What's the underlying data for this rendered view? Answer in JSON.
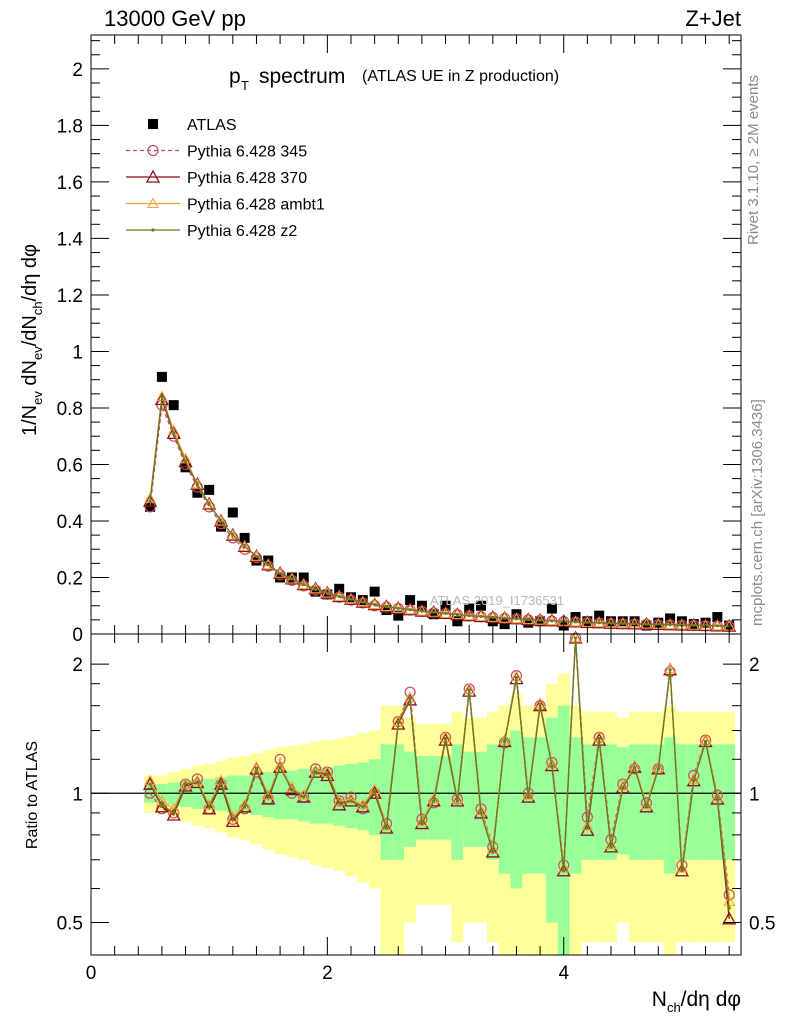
{
  "header": {
    "left": "13000 GeV pp",
    "right": "Z+Jet"
  },
  "side_labels": {
    "rivet": "Rivet 3.1.10, ≥ 2M events",
    "mcplots": "mcplots.cern.ch [arXiv:1306.3436]"
  },
  "watermark": "ATLAS 2019_I1736531",
  "colors": {
    "data": "#000000",
    "p345": "#c44e62",
    "p370": "#8b0e1e",
    "ambt1": "#f2a33a",
    "z2": "#6b7b1f",
    "band_outer": "#ffff99",
    "band_inner": "#99ff99"
  },
  "chart_data": [
    {
      "type": "scatter",
      "title": "p_T spectrum (ATLAS UE in Z production)",
      "title_main": "p",
      "title_sub": "T",
      "title_word": "spectrum",
      "title_paren": "(ATLAS UE in Z production)",
      "ylabel": "1/N_ev dN_ev/dN_ch/dη dφ",
      "ylabel_parts": [
        "1/N",
        "ev",
        " dN",
        "ev",
        "/dN",
        "ch",
        "/dη dφ"
      ],
      "xlim": [
        0,
        5.5
      ],
      "ylim": [
        0,
        2.12
      ],
      "yticks": [
        "0",
        "0.2",
        "0.4",
        "0.6",
        "0.8",
        "1",
        "1.2",
        "1.4",
        "1.6",
        "1.8",
        "2"
      ],
      "legend_position": "top-left",
      "legend": [
        "ATLAS",
        "Pythia 6.428 345",
        "Pythia 6.428 370",
        "Pythia 6.428 ambt1",
        "Pythia 6.428 z2"
      ],
      "x": [
        0.5,
        0.6,
        0.7,
        0.8,
        0.9,
        1.0,
        1.1,
        1.2,
        1.3,
        1.4,
        1.5,
        1.6,
        1.7,
        1.8,
        1.9,
        2.0,
        2.1,
        2.2,
        2.3,
        2.4,
        2.5,
        2.6,
        2.7,
        2.8,
        2.9,
        3.0,
        3.1,
        3.2,
        3.3,
        3.4,
        3.5,
        3.6,
        3.7,
        3.8,
        3.9,
        4.0,
        4.1,
        4.2,
        4.3,
        4.4,
        4.5,
        4.6,
        4.7,
        4.8,
        4.9,
        5.0,
        5.1,
        5.2,
        5.3,
        5.4
      ],
      "series": [
        {
          "name": "ATLAS",
          "values": [
            0.45,
            0.91,
            0.81,
            0.59,
            0.5,
            0.51,
            0.38,
            0.43,
            0.34,
            0.26,
            0.26,
            0.2,
            0.2,
            0.2,
            0.15,
            0.14,
            0.16,
            0.13,
            0.12,
            0.15,
            0.085,
            0.065,
            0.12,
            0.1,
            0.07,
            0.1,
            0.045,
            0.09,
            0.1,
            0.045,
            0.035,
            0.07,
            0.04,
            0.045,
            0.09,
            0.03,
            0.06,
            0.045,
            0.065,
            0.045,
            0.045,
            0.045,
            0.03,
            0.04,
            0.055,
            0.045,
            0.035,
            0.04,
            0.06,
            0.03
          ]
        },
        {
          "name": "Pythia 6.428 345",
          "values": [
            0.45,
            0.81,
            0.7,
            0.6,
            0.52,
            0.45,
            0.39,
            0.34,
            0.3,
            0.27,
            0.24,
            0.21,
            0.19,
            0.17,
            0.155,
            0.14,
            0.13,
            0.12,
            0.11,
            0.1,
            0.095,
            0.09,
            0.085,
            0.08,
            0.075,
            0.072,
            0.068,
            0.064,
            0.061,
            0.058,
            0.055,
            0.053,
            0.05,
            0.048,
            0.046,
            0.044,
            0.042,
            0.04,
            0.039,
            0.037,
            0.036,
            0.035,
            0.034,
            0.033,
            0.032,
            0.031,
            0.03,
            0.029,
            0.028,
            0.027
          ]
        },
        {
          "name": "Pythia 6.428 370",
          "values": [
            0.47,
            0.83,
            0.71,
            0.61,
            0.53,
            0.46,
            0.4,
            0.35,
            0.31,
            0.275,
            0.245,
            0.215,
            0.195,
            0.175,
            0.16,
            0.145,
            0.133,
            0.123,
            0.113,
            0.104,
            0.097,
            0.091,
            0.086,
            0.081,
            0.077,
            0.073,
            0.069,
            0.065,
            0.062,
            0.059,
            0.056,
            0.054,
            0.051,
            0.049,
            0.047,
            0.045,
            0.043,
            0.041,
            0.04,
            0.038,
            0.037,
            0.036,
            0.035,
            0.034,
            0.033,
            0.032,
            0.031,
            0.03,
            0.029,
            0.028
          ]
        },
        {
          "name": "Pythia 6.428 ambt1",
          "values": [
            0.48,
            0.84,
            0.72,
            0.62,
            0.53,
            0.46,
            0.4,
            0.35,
            0.31,
            0.275,
            0.245,
            0.215,
            0.195,
            0.175,
            0.16,
            0.145,
            0.133,
            0.123,
            0.113,
            0.104,
            0.097,
            0.091,
            0.086,
            0.081,
            0.077,
            0.073,
            0.069,
            0.065,
            0.062,
            0.059,
            0.056,
            0.054,
            0.051,
            0.049,
            0.047,
            0.045,
            0.043,
            0.041,
            0.04,
            0.038,
            0.037,
            0.036,
            0.035,
            0.034,
            0.033,
            0.032,
            0.031,
            0.03,
            0.029,
            0.028
          ]
        },
        {
          "name": "Pythia 6.428 z2",
          "values": [
            0.47,
            0.84,
            0.71,
            0.61,
            0.53,
            0.46,
            0.4,
            0.35,
            0.31,
            0.275,
            0.245,
            0.215,
            0.195,
            0.175,
            0.16,
            0.145,
            0.133,
            0.123,
            0.113,
            0.104,
            0.097,
            0.091,
            0.086,
            0.081,
            0.077,
            0.073,
            0.069,
            0.065,
            0.062,
            0.059,
            0.056,
            0.054,
            0.051,
            0.049,
            0.047,
            0.045,
            0.043,
            0.041,
            0.04,
            0.038,
            0.037,
            0.036,
            0.035,
            0.034,
            0.033,
            0.032,
            0.031,
            0.03,
            0.029,
            0.028
          ]
        }
      ]
    },
    {
      "type": "line",
      "ylabel": "Ratio to ATLAS",
      "xlabel": "N_ch/dη dφ",
      "xlabel_parts": [
        "N",
        "ch",
        "/dη dφ"
      ],
      "xlim": [
        0,
        5.5
      ],
      "ylim": [
        0.42,
        2.35
      ],
      "log_y": true,
      "yticks": [
        "0.5",
        "1",
        "2"
      ],
      "xticks": [
        "0",
        "2",
        "4"
      ],
      "x": [
        0.5,
        0.6,
        0.7,
        0.8,
        0.9,
        1.0,
        1.1,
        1.2,
        1.3,
        1.4,
        1.5,
        1.6,
        1.7,
        1.8,
        1.9,
        2.0,
        2.1,
        2.2,
        2.3,
        2.4,
        2.5,
        2.6,
        2.7,
        2.8,
        2.9,
        3.0,
        3.1,
        3.2,
        3.3,
        3.4,
        3.5,
        3.6,
        3.7,
        3.8,
        3.9,
        4.0,
        4.1,
        4.2,
        4.3,
        4.4,
        4.5,
        4.6,
        4.7,
        4.8,
        4.9,
        5.0,
        5.1,
        5.2,
        5.3,
        5.4
      ],
      "bands": {
        "inner_half_width": [
          0.05,
          0.05,
          0.06,
          0.07,
          0.08,
          0.08,
          0.09,
          0.1,
          0.1,
          0.11,
          0.12,
          0.13,
          0.13,
          0.14,
          0.15,
          0.15,
          0.16,
          0.17,
          0.18,
          0.2,
          0.3,
          0.3,
          0.25,
          0.22,
          0.22,
          0.22,
          0.3,
          0.25,
          0.25,
          0.3,
          0.35,
          0.4,
          0.35,
          0.35,
          0.5,
          0.6,
          0.35,
          0.3,
          0.3,
          0.3,
          0.28,
          0.3,
          0.3,
          0.3,
          0.35,
          0.3,
          0.3,
          0.3,
          0.3,
          0.3
        ],
        "outer_half_width": [
          0.1,
          0.1,
          0.12,
          0.14,
          0.16,
          0.17,
          0.19,
          0.21,
          0.22,
          0.24,
          0.26,
          0.28,
          0.29,
          0.3,
          0.32,
          0.33,
          0.34,
          0.36,
          0.38,
          0.4,
          0.6,
          0.6,
          0.5,
          0.45,
          0.45,
          0.45,
          0.55,
          0.5,
          0.5,
          0.55,
          0.6,
          0.7,
          0.6,
          0.6,
          0.8,
          0.9,
          0.6,
          0.55,
          0.55,
          0.55,
          0.5,
          0.55,
          0.55,
          0.55,
          0.6,
          0.55,
          0.55,
          0.55,
          0.55,
          0.55
        ]
      },
      "series": [
        {
          "name": "Pythia 6.428 345",
          "values": [
            1.0,
            0.92,
            0.9,
            1.05,
            1.08,
            0.92,
            1.05,
            0.87,
            0.92,
            1.12,
            0.97,
            1.2,
            1.0,
            0.98,
            1.14,
            1.12,
            0.96,
            0.98,
            0.92,
            1.0,
            0.85,
            1.47,
            1.72,
            0.87,
            0.95,
            1.35,
            0.97,
            1.75,
            0.92,
            0.75,
            1.31,
            1.88,
            1.0,
            1.6,
            1.18,
            0.68,
            2.3,
            0.88,
            1.35,
            0.78,
            1.05,
            1.14,
            0.95,
            1.14,
            1.92,
            0.68,
            1.1,
            1.33,
            0.99,
            0.58
          ]
        },
        {
          "name": "Pythia 6.428 370",
          "values": [
            1.05,
            0.93,
            0.89,
            1.04,
            1.06,
            0.92,
            1.05,
            0.86,
            0.93,
            1.14,
            0.97,
            1.15,
            1.02,
            0.98,
            1.12,
            1.1,
            0.94,
            0.96,
            0.93,
            1.0,
            0.83,
            1.45,
            1.65,
            0.85,
            0.96,
            1.33,
            0.96,
            1.73,
            0.9,
            0.73,
            1.32,
            1.85,
            0.98,
            1.6,
            1.16,
            0.66,
            2.3,
            0.82,
            1.33,
            0.75,
            1.03,
            1.15,
            0.93,
            1.14,
            1.94,
            0.66,
            1.07,
            1.32,
            0.97,
            0.51
          ]
        },
        {
          "name": "Pythia 6.428 ambt1",
          "values": [
            1.07,
            0.96,
            0.92,
            1.05,
            1.07,
            0.94,
            1.07,
            0.88,
            0.94,
            1.15,
            0.99,
            1.16,
            1.03,
            0.99,
            1.13,
            1.12,
            0.96,
            0.97,
            0.94,
            1.02,
            0.84,
            1.47,
            1.67,
            0.86,
            0.97,
            1.35,
            0.97,
            1.75,
            0.91,
            0.74,
            1.33,
            1.87,
            0.99,
            1.62,
            1.17,
            0.67,
            2.3,
            0.84,
            1.35,
            0.76,
            1.04,
            1.16,
            0.94,
            1.15,
            1.95,
            0.67,
            1.08,
            1.33,
            0.98,
            0.56
          ]
        },
        {
          "name": "Pythia 6.428 z2",
          "values": [
            1.05,
            0.94,
            0.9,
            1.05,
            1.06,
            0.93,
            1.06,
            0.87,
            0.93,
            1.14,
            0.98,
            1.15,
            1.02,
            0.98,
            1.12,
            1.11,
            0.95,
            0.96,
            0.93,
            1.01,
            0.83,
            1.46,
            1.66,
            0.85,
            0.96,
            1.34,
            0.96,
            1.74,
            0.9,
            0.73,
            1.32,
            1.86,
            0.98,
            1.61,
            1.16,
            0.66,
            2.3,
            0.83,
            1.34,
            0.75,
            1.03,
            1.15,
            0.93,
            1.14,
            1.94,
            0.66,
            1.07,
            1.32,
            0.97,
            0.54
          ]
        }
      ]
    }
  ]
}
